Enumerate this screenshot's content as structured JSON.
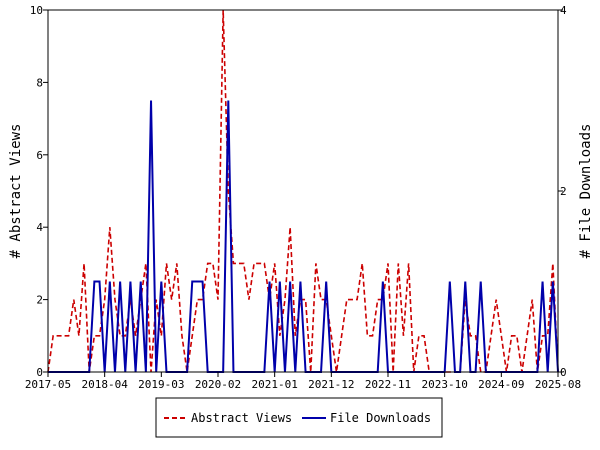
{
  "chart_data": {
    "type": "line",
    "x_tick_labels": [
      "2017-05",
      "2018-04",
      "2019-03",
      "2020-02",
      "2021-01",
      "2021-12",
      "2022-11",
      "2023-10",
      "2024-09",
      "2025-08"
    ],
    "x_range": [
      "2017-05",
      "2025-08"
    ],
    "ylabel_left": "# Abstract Views",
    "ylabel_right": "# File Downloads",
    "y_left_range": [
      0,
      10
    ],
    "y_left_ticks": [
      "0",
      "2",
      "4",
      "6",
      "8",
      "10"
    ],
    "y_right_range": [
      0,
      4
    ],
    "y_right_ticks": [
      "0",
      "2",
      "4"
    ],
    "grid": false,
    "legend_position": "bottom",
    "series": [
      {
        "name": "Abstract Views",
        "axis": "left",
        "color": "#cc0000",
        "style": "dashed",
        "points": [
          [
            "2017-05",
            0
          ],
          [
            "2017-06",
            1
          ],
          [
            "2017-07",
            1
          ],
          [
            "2017-08",
            1
          ],
          [
            "2017-09",
            1
          ],
          [
            "2017-10",
            2
          ],
          [
            "2017-11",
            1
          ],
          [
            "2017-12",
            3
          ],
          [
            "2018-01",
            0
          ],
          [
            "2018-02",
            1
          ],
          [
            "2018-03",
            1
          ],
          [
            "2018-04",
            2
          ],
          [
            "2018-05",
            4
          ],
          [
            "2018-06",
            2
          ],
          [
            "2018-07",
            1
          ],
          [
            "2018-08",
            1
          ],
          [
            "2018-09",
            2
          ],
          [
            "2018-10",
            1
          ],
          [
            "2018-11",
            2
          ],
          [
            "2018-12",
            3
          ],
          [
            "2019-01",
            0
          ],
          [
            "2019-02",
            2
          ],
          [
            "2019-03",
            1
          ],
          [
            "2019-04",
            3
          ],
          [
            "2019-05",
            2
          ],
          [
            "2019-06",
            3
          ],
          [
            "2019-07",
            1
          ],
          [
            "2019-08",
            0
          ],
          [
            "2019-09",
            1
          ],
          [
            "2019-10",
            2
          ],
          [
            "2019-11",
            2
          ],
          [
            "2019-12",
            3
          ],
          [
            "2020-01",
            3
          ],
          [
            "2020-02",
            2
          ],
          [
            "2020-03",
            10
          ],
          [
            "2020-04",
            5
          ],
          [
            "2020-05",
            3
          ],
          [
            "2020-06",
            3
          ],
          [
            "2020-07",
            3
          ],
          [
            "2020-08",
            2
          ],
          [
            "2020-09",
            3
          ],
          [
            "2020-10",
            3
          ],
          [
            "2020-11",
            3
          ],
          [
            "2020-12",
            2
          ],
          [
            "2021-01",
            3
          ],
          [
            "2021-02",
            1
          ],
          [
            "2021-03",
            2
          ],
          [
            "2021-04",
            4
          ],
          [
            "2021-05",
            1
          ],
          [
            "2021-06",
            2
          ],
          [
            "2021-07",
            2
          ],
          [
            "2021-08",
            0
          ],
          [
            "2021-09",
            3
          ],
          [
            "2021-10",
            2
          ],
          [
            "2021-11",
            2
          ],
          [
            "2021-12",
            1
          ],
          [
            "2022-01",
            0
          ],
          [
            "2022-02",
            1
          ],
          [
            "2022-03",
            2
          ],
          [
            "2022-04",
            2
          ],
          [
            "2022-05",
            2
          ],
          [
            "2022-06",
            3
          ],
          [
            "2022-07",
            1
          ],
          [
            "2022-08",
            1
          ],
          [
            "2022-09",
            2
          ],
          [
            "2022-10",
            2
          ],
          [
            "2022-11",
            3
          ],
          [
            "2022-12",
            0
          ],
          [
            "2023-01",
            3
          ],
          [
            "2023-02",
            1
          ],
          [
            "2023-03",
            3
          ],
          [
            "2023-04",
            0
          ],
          [
            "2023-05",
            1
          ],
          [
            "2023-06",
            1
          ],
          [
            "2023-07",
            0
          ],
          [
            "2023-08",
            0
          ],
          [
            "2023-09",
            0
          ],
          [
            "2023-10",
            0
          ],
          [
            "2023-11",
            0
          ],
          [
            "2023-12",
            0
          ],
          [
            "2024-01",
            0
          ],
          [
            "2024-02",
            2
          ],
          [
            "2024-03",
            1
          ],
          [
            "2024-04",
            1
          ],
          [
            "2024-05",
            0
          ],
          [
            "2024-06",
            0
          ],
          [
            "2024-07",
            1
          ],
          [
            "2024-08",
            2
          ],
          [
            "2024-09",
            1
          ],
          [
            "2024-10",
            0
          ],
          [
            "2024-11",
            1
          ],
          [
            "2024-12",
            1
          ],
          [
            "2025-01",
            0
          ],
          [
            "2025-02",
            1
          ],
          [
            "2025-03",
            2
          ],
          [
            "2025-04",
            0
          ],
          [
            "2025-05",
            1
          ],
          [
            "2025-06",
            1
          ],
          [
            "2025-07",
            3
          ],
          [
            "2025-08",
            0
          ]
        ]
      },
      {
        "name": "File Downloads",
        "axis": "right",
        "color": "#0000aa",
        "style": "solid",
        "points": [
          [
            "2017-05",
            0
          ],
          [
            "2017-06",
            0
          ],
          [
            "2017-07",
            0
          ],
          [
            "2017-08",
            0
          ],
          [
            "2017-09",
            0
          ],
          [
            "2017-10",
            0
          ],
          [
            "2017-11",
            0
          ],
          [
            "2017-12",
            0
          ],
          [
            "2018-01",
            0
          ],
          [
            "2018-02",
            1
          ],
          [
            "2018-03",
            1
          ],
          [
            "2018-04",
            0
          ],
          [
            "2018-05",
            1
          ],
          [
            "2018-06",
            0
          ],
          [
            "2018-07",
            1
          ],
          [
            "2018-08",
            0
          ],
          [
            "2018-09",
            1
          ],
          [
            "2018-10",
            0
          ],
          [
            "2018-11",
            1
          ],
          [
            "2018-12",
            0
          ],
          [
            "2019-01",
            3
          ],
          [
            "2019-02",
            0
          ],
          [
            "2019-03",
            1
          ],
          [
            "2019-04",
            0
          ],
          [
            "2019-05",
            0
          ],
          [
            "2019-06",
            0
          ],
          [
            "2019-07",
            0
          ],
          [
            "2019-08",
            0
          ],
          [
            "2019-09",
            1
          ],
          [
            "2019-10",
            1
          ],
          [
            "2019-11",
            1
          ],
          [
            "2019-12",
            0
          ],
          [
            "2020-01",
            0
          ],
          [
            "2020-02",
            0
          ],
          [
            "2020-03",
            0
          ],
          [
            "2020-04",
            3
          ],
          [
            "2020-05",
            0
          ],
          [
            "2020-06",
            0
          ],
          [
            "2020-07",
            0
          ],
          [
            "2020-08",
            0
          ],
          [
            "2020-09",
            0
          ],
          [
            "2020-10",
            0
          ],
          [
            "2020-11",
            0
          ],
          [
            "2020-12",
            1
          ],
          [
            "2021-01",
            0
          ],
          [
            "2021-02",
            1
          ],
          [
            "2021-03",
            0
          ],
          [
            "2021-04",
            1
          ],
          [
            "2021-05",
            0
          ],
          [
            "2021-06",
            1
          ],
          [
            "2021-07",
            0
          ],
          [
            "2021-08",
            0
          ],
          [
            "2021-09",
            0
          ],
          [
            "2021-10",
            0
          ],
          [
            "2021-11",
            1
          ],
          [
            "2021-12",
            0
          ],
          [
            "2022-01",
            0
          ],
          [
            "2022-02",
            0
          ],
          [
            "2022-03",
            0
          ],
          [
            "2022-04",
            0
          ],
          [
            "2022-05",
            0
          ],
          [
            "2022-06",
            0
          ],
          [
            "2022-07",
            0
          ],
          [
            "2022-08",
            0
          ],
          [
            "2022-09",
            0
          ],
          [
            "2022-10",
            1
          ],
          [
            "2022-11",
            0
          ],
          [
            "2022-12",
            0
          ],
          [
            "2023-01",
            0
          ],
          [
            "2023-02",
            0
          ],
          [
            "2023-03",
            0
          ],
          [
            "2023-04",
            0
          ],
          [
            "2023-05",
            0
          ],
          [
            "2023-06",
            0
          ],
          [
            "2023-07",
            0
          ],
          [
            "2023-08",
            0
          ],
          [
            "2023-09",
            0
          ],
          [
            "2023-10",
            0
          ],
          [
            "2023-11",
            1
          ],
          [
            "2023-12",
            0
          ],
          [
            "2024-01",
            0
          ],
          [
            "2024-02",
            1
          ],
          [
            "2024-03",
            0
          ],
          [
            "2024-04",
            0
          ],
          [
            "2024-05",
            1
          ],
          [
            "2024-06",
            0
          ],
          [
            "2024-07",
            0
          ],
          [
            "2024-08",
            0
          ],
          [
            "2024-09",
            0
          ],
          [
            "2024-10",
            0
          ],
          [
            "2024-11",
            0
          ],
          [
            "2024-12",
            0
          ],
          [
            "2025-01",
            0
          ],
          [
            "2025-02",
            0
          ],
          [
            "2025-03",
            0
          ],
          [
            "2025-04",
            0
          ],
          [
            "2025-05",
            1
          ],
          [
            "2025-06",
            0
          ],
          [
            "2025-07",
            1
          ],
          [
            "2025-08",
            0
          ]
        ]
      }
    ]
  }
}
